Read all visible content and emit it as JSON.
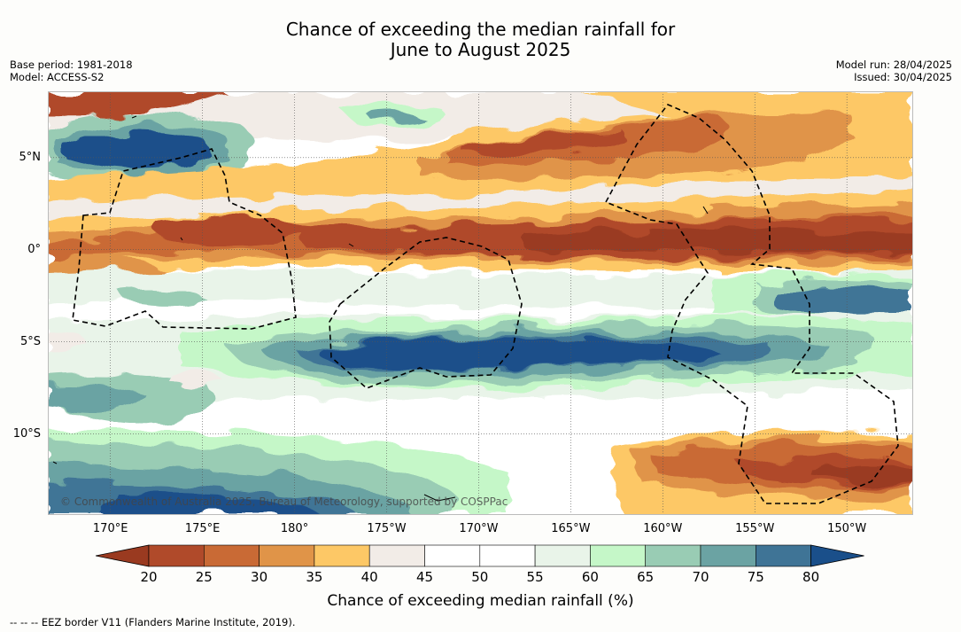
{
  "title": {
    "line1": "Chance of exceeding the median rainfall for",
    "line2": "June to August 2025"
  },
  "meta_left": {
    "base_period": "Base period: 1981-2018",
    "model": "Model: ACCESS-S2"
  },
  "meta_right": {
    "model_run": "Model run: 28/04/2025",
    "issued": "Issued: 30/04/2025"
  },
  "map": {
    "lat_labels": [
      "5°N",
      "0°",
      "5°S",
      "10°S"
    ],
    "lon_labels": [
      "170°E",
      "175°E",
      "180°",
      "175°W",
      "170°W",
      "165°W",
      "160°W",
      "155°W",
      "150°W"
    ],
    "copyright": "© Commonwealth of Australia 2025, Bureau of Meteorology, supported by COSPPac",
    "extent": {
      "lon_min": 166.6,
      "lon_max": 213.6,
      "lat_min": -14.4,
      "lat_max": 8.6
    },
    "rain_bands": [
      {
        "name": "north-equatorial-dry-band",
        "lat": 0.2,
        "width": 2.8,
        "value": 25
      },
      {
        "name": "north-dry-core",
        "lat": -0.3,
        "width": 1.2,
        "value": 20
      },
      {
        "name": "upper-north-dry-band",
        "lat": 5.4,
        "width": 2.4,
        "value": 30
      },
      {
        "name": "south-wet-band",
        "lat": -6.1,
        "width": 2.6,
        "value": 75
      },
      {
        "name": "south-east-dry-patch",
        "lat": -12.4,
        "width": 2.2,
        "value": 30
      },
      {
        "name": "north-west-wet-patch",
        "lat": 5.6,
        "width": 1.6,
        "value": 80
      }
    ]
  },
  "colorbar": {
    "ticks": [
      "20",
      "25",
      "30",
      "35",
      "40",
      "45",
      "50",
      "55",
      "60",
      "65",
      "70",
      "75",
      "80"
    ],
    "colors": [
      "#9a3a20",
      "#b04a2a",
      "#c96a35",
      "#e09448",
      "#fdc866",
      "#f2ece7",
      "#ffffff",
      "#ffffff",
      "#e9f4e9",
      "#c5f7c8",
      "#99ccb4",
      "#6ba3a3",
      "#3f7496",
      "#1a4f8a"
    ],
    "label": "Chance of exceeding median rainfall (%)"
  },
  "footnote": "--  --  -- EEZ border V11 (Flanders Marine Institute, 2019)."
}
